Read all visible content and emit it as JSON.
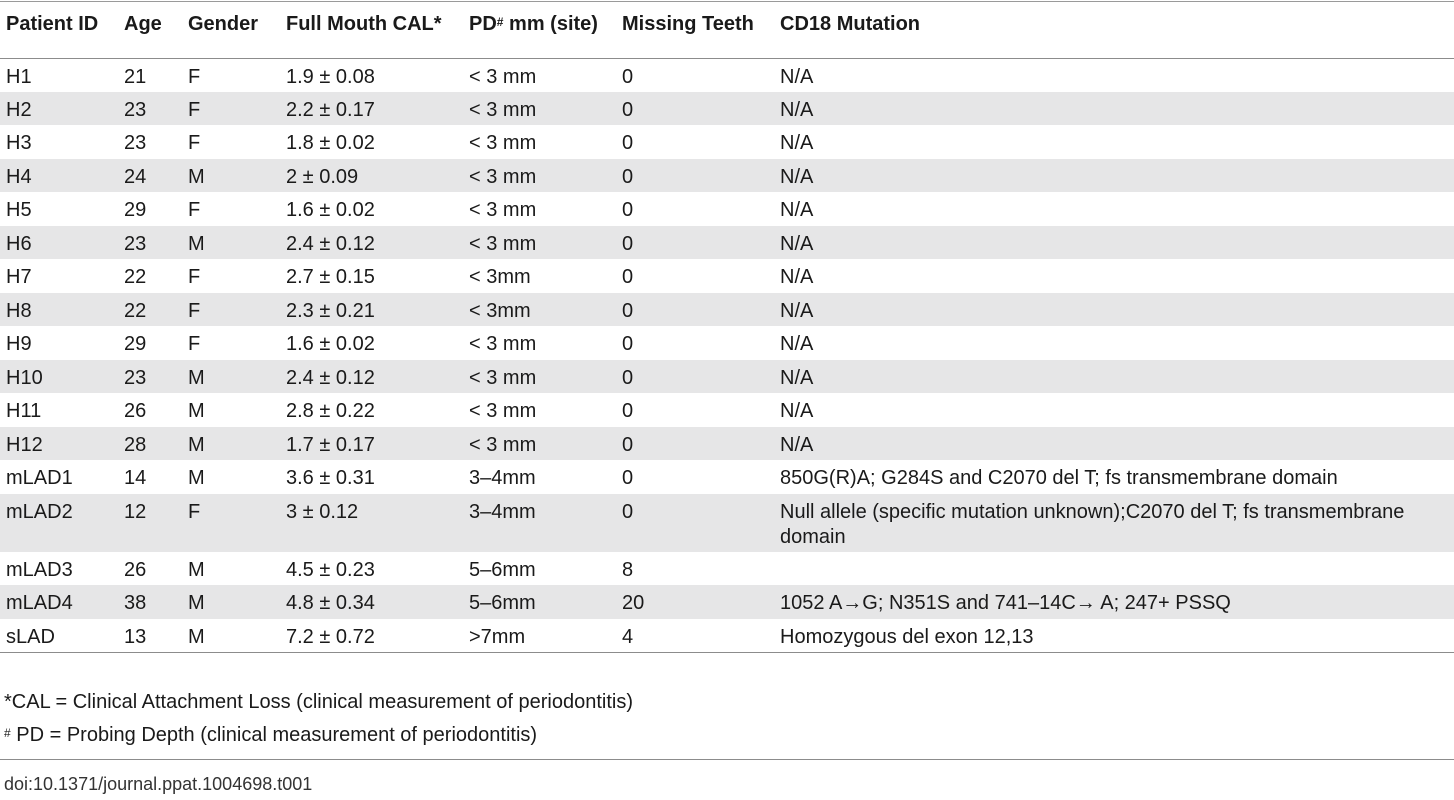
{
  "table": {
    "headers": {
      "patient_id": "Patient ID",
      "age": "Age",
      "gender": "Gender",
      "cal": "Full Mouth CAL*",
      "pd_main": "PD",
      "pd_sup": "#",
      "pd_rest": " mm (site)",
      "missing": "Missing Teeth",
      "cd18": "CD18 Mutation"
    },
    "rows": [
      {
        "id": "H1",
        "age": "21",
        "gender": "F",
        "cal": "1.9 ± 0.08",
        "pd": "< 3 mm",
        "missing": "0",
        "mutation": "N/A"
      },
      {
        "id": "H2",
        "age": "23",
        "gender": "F",
        "cal": "2.2 ± 0.17",
        "pd": "< 3 mm",
        "missing": "0",
        "mutation": "N/A"
      },
      {
        "id": "H3",
        "age": "23",
        "gender": "F",
        "cal": "1.8 ± 0.02",
        "pd": "< 3 mm",
        "missing": "0",
        "mutation": "N/A"
      },
      {
        "id": "H4",
        "age": "24",
        "gender": "M",
        "cal": "2 ± 0.09",
        "pd": "< 3 mm",
        "missing": "0",
        "mutation": "N/A"
      },
      {
        "id": "H5",
        "age": "29",
        "gender": "F",
        "cal": "1.6 ± 0.02",
        "pd": "< 3 mm",
        "missing": "0",
        "mutation": "N/A"
      },
      {
        "id": "H6",
        "age": "23",
        "gender": "M",
        "cal": "2.4 ± 0.12",
        "pd": "< 3 mm",
        "missing": "0",
        "mutation": "N/A"
      },
      {
        "id": "H7",
        "age": "22",
        "gender": "F",
        "cal": "2.7 ± 0.15",
        "pd": "< 3mm",
        "missing": "0",
        "mutation": "N/A"
      },
      {
        "id": "H8",
        "age": "22",
        "gender": "F",
        "cal": "2.3 ± 0.21",
        "pd": "< 3mm",
        "missing": "0",
        "mutation": "N/A"
      },
      {
        "id": "H9",
        "age": "29",
        "gender": "F",
        "cal": "1.6 ± 0.02",
        "pd": "< 3 mm",
        "missing": "0",
        "mutation": "N/A"
      },
      {
        "id": "H10",
        "age": "23",
        "gender": "M",
        "cal": "2.4 ± 0.12",
        "pd": "< 3 mm",
        "missing": "0",
        "mutation": "N/A"
      },
      {
        "id": "H11",
        "age": "26",
        "gender": "M",
        "cal": "2.8 ± 0.22",
        "pd": "< 3 mm",
        "missing": "0",
        "mutation": "N/A"
      },
      {
        "id": "H12",
        "age": "28",
        "gender": "M",
        "cal": "1.7 ± 0.17",
        "pd": "< 3 mm",
        "missing": "0",
        "mutation": "N/A"
      },
      {
        "id": "mLAD1",
        "age": "14",
        "gender": "M",
        "cal": "3.6 ± 0.31",
        "pd": "3–4mm",
        "missing": "0",
        "mutation": "850G(R)A; G284S and C2070 del T; fs transmembrane domain"
      },
      {
        "id": "mLAD2",
        "age": "12",
        "gender": "F",
        "cal": "3 ± 0.12",
        "pd": "3–4mm",
        "missing": "0",
        "mutation": "Null allele (specific mutation unknown);C2070 del T; fs transmembrane domain"
      },
      {
        "id": "mLAD3",
        "age": "26",
        "gender": "M",
        "cal": "4.5 ± 0.23",
        "pd": "5–6mm",
        "missing": "8",
        "mutation": ""
      },
      {
        "id": "mLAD4",
        "age": "38",
        "gender": "M",
        "cal": "4.8 ± 0.34",
        "pd": "5–6mm",
        "missing": "20",
        "mutation": "1052 A→G; N351S and 741–14C→ A; 247+ PSSQ"
      },
      {
        "id": "sLAD",
        "age": "13",
        "gender": "M",
        "cal": "7.2 ± 0.72",
        "pd": ">7mm",
        "missing": "4",
        "mutation": "Homozygous del exon 12,13"
      }
    ]
  },
  "footnotes": {
    "cal_note": "*CAL = Clinical Attachment Loss (clinical measurement of periodontitis)",
    "pd_mark": "#",
    "pd_note": " PD = Probing Depth (clinical measurement of periodontitis)"
  },
  "doi": "doi:10.1371/journal.ppat.1004698.t001"
}
